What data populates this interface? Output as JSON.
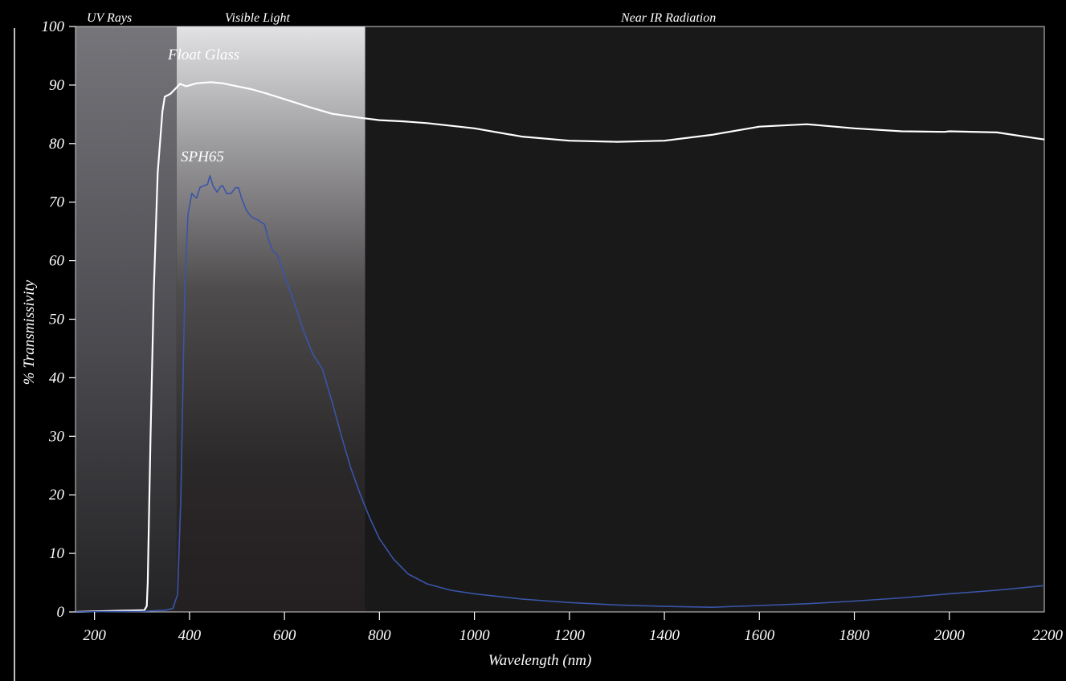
{
  "chart_data": {
    "type": "line",
    "title": "",
    "xlabel": "Wavelength (nm)",
    "ylabel": "% Transmissivity",
    "xlim": [
      160,
      2200
    ],
    "ylim": [
      0,
      100
    ],
    "x_ticks": [
      200,
      400,
      600,
      800,
      1000,
      1200,
      1400,
      1600,
      1800,
      2000,
      2200
    ],
    "y_ticks": [
      0,
      10,
      20,
      30,
      40,
      50,
      60,
      70,
      80,
      90,
      100
    ],
    "grid": false,
    "bands": [
      {
        "label": "UV Rays",
        "x0": 160,
        "x1": 373,
        "color": "#6b6b70"
      },
      {
        "label": "Visible Light",
        "x0": 373,
        "x1": 770,
        "color": "#ffffff"
      },
      {
        "label": "Near IR Radiation",
        "x0": 770,
        "x1": 2200,
        "color": "#191919"
      }
    ],
    "series": [
      {
        "name": "Float Glass",
        "color": "#ffffff",
        "points": [
          [
            160,
            0
          ],
          [
            250,
            0.2
          ],
          [
            305,
            0.3
          ],
          [
            310,
            1
          ],
          [
            312,
            5
          ],
          [
            318,
            30
          ],
          [
            325,
            55
          ],
          [
            333,
            75
          ],
          [
            343,
            85.5
          ],
          [
            348,
            88
          ],
          [
            360,
            88.5
          ],
          [
            372,
            89.5
          ],
          [
            380,
            90.2
          ],
          [
            393,
            89.8
          ],
          [
            415,
            90.3
          ],
          [
            445,
            90.5
          ],
          [
            470,
            90.3
          ],
          [
            500,
            89.8
          ],
          [
            530,
            89.3
          ],
          [
            560,
            88.6
          ],
          [
            600,
            87.6
          ],
          [
            650,
            86.3
          ],
          [
            700,
            85.1
          ],
          [
            760,
            84.4
          ],
          [
            800,
            84
          ],
          [
            850,
            83.8
          ],
          [
            900,
            83.5
          ],
          [
            1000,
            82.6
          ],
          [
            1100,
            81.2
          ],
          [
            1200,
            80.5
          ],
          [
            1300,
            80.3
          ],
          [
            1400,
            80.5
          ],
          [
            1500,
            81.5
          ],
          [
            1600,
            82.9
          ],
          [
            1700,
            83.3
          ],
          [
            1800,
            82.6
          ],
          [
            1900,
            82.1
          ],
          [
            1990,
            82
          ],
          [
            2000,
            82.1
          ],
          [
            2100,
            81.9
          ],
          [
            2200,
            80.7
          ]
        ]
      },
      {
        "name": "SPH65",
        "color": "#3a55a8",
        "points": [
          [
            160,
            0
          ],
          [
            300,
            0.1
          ],
          [
            350,
            0.3
          ],
          [
            365,
            0.6
          ],
          [
            375,
            3
          ],
          [
            382,
            20
          ],
          [
            390,
            55
          ],
          [
            397,
            68
          ],
          [
            405,
            71.5
          ],
          [
            410,
            71
          ],
          [
            415,
            70.7
          ],
          [
            422,
            72.5
          ],
          [
            430,
            72.8
          ],
          [
            438,
            73
          ],
          [
            443,
            74.5
          ],
          [
            450,
            72.7
          ],
          [
            458,
            71.7
          ],
          [
            466,
            72.7
          ],
          [
            470,
            72.8
          ],
          [
            478,
            71.5
          ],
          [
            488,
            71.5
          ],
          [
            496,
            72.4
          ],
          [
            503,
            72.5
          ],
          [
            510,
            70.6
          ],
          [
            520,
            68.6
          ],
          [
            530,
            67.5
          ],
          [
            543,
            67
          ],
          [
            558,
            66.2
          ],
          [
            565,
            64
          ],
          [
            575,
            61.7
          ],
          [
            585,
            61
          ],
          [
            600,
            57.5
          ],
          [
            620,
            53
          ],
          [
            640,
            48
          ],
          [
            660,
            44
          ],
          [
            680,
            41.5
          ],
          [
            700,
            36
          ],
          [
            720,
            30
          ],
          [
            740,
            24.5
          ],
          [
            760,
            20
          ],
          [
            780,
            16
          ],
          [
            800,
            12.5
          ],
          [
            830,
            9
          ],
          [
            860,
            6.5
          ],
          [
            900,
            4.8
          ],
          [
            950,
            3.7
          ],
          [
            1000,
            3.1
          ],
          [
            1100,
            2.2
          ],
          [
            1200,
            1.6
          ],
          [
            1300,
            1.2
          ],
          [
            1400,
            0.95
          ],
          [
            1500,
            0.8
          ],
          [
            1600,
            1.1
          ],
          [
            1700,
            1.4
          ],
          [
            1800,
            1.85
          ],
          [
            1900,
            2.4
          ],
          [
            2000,
            3.1
          ],
          [
            2100,
            3.7
          ],
          [
            2200,
            4.5
          ]
        ]
      }
    ]
  }
}
